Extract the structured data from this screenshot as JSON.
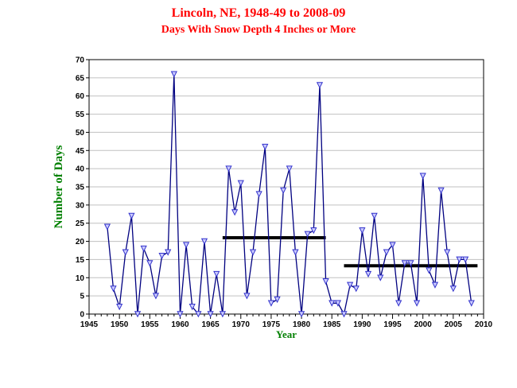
{
  "header": {
    "title": "Lincoln, NE, 1948-49 to 2008-09",
    "subtitle": "Days With Snow Depth 4 Inches or More"
  },
  "colors": {
    "title": "#ff0000",
    "axis_titles": "#008000",
    "line": "#000080",
    "markers": "#3333cc",
    "marker_fill": "#ccccff",
    "grid": "#c0c0c0",
    "average_bars": "#000000"
  },
  "chart_data": {
    "type": "line",
    "title": "Lincoln, NE, 1948-49 to 2008-09",
    "subtitle": "Days With Snow Depth 4 Inches or More",
    "xlabel": "Year",
    "ylabel": "Number of Days",
    "xlim": [
      1945,
      2010
    ],
    "ylim": [
      0,
      70
    ],
    "x_ticks": [
      1945,
      1950,
      1955,
      1960,
      1965,
      1970,
      1975,
      1980,
      1985,
      1990,
      1995,
      2000,
      2005,
      2010
    ],
    "y_ticks": [
      0,
      5,
      10,
      15,
      20,
      25,
      30,
      35,
      40,
      45,
      50,
      55,
      60,
      65,
      70
    ],
    "grid": true,
    "marker": "triangle-down",
    "series": [
      {
        "x": [
          1948,
          1949,
          1950,
          1951,
          1952,
          1953,
          1954,
          1955,
          1956,
          1957,
          1958,
          1959,
          1960,
          1961,
          1962,
          1963,
          1964,
          1965,
          1966,
          1967,
          1968,
          1969,
          1970,
          1971,
          1972,
          1973,
          1974,
          1975,
          1976,
          1977,
          1978,
          1979,
          1980,
          1981,
          1982,
          1983,
          1984,
          1985,
          1986,
          1987,
          1988,
          1989,
          1990,
          1991,
          1992,
          1993,
          1994,
          1995,
          1996,
          1997,
          1998,
          1999,
          2000,
          2001,
          2002,
          2003,
          2004,
          2005,
          2006,
          2007,
          2008
        ],
        "values": [
          24,
          7,
          2,
          17,
          27,
          0,
          18,
          14,
          5,
          16,
          17,
          66,
          0,
          19,
          2,
          0,
          20,
          0,
          11,
          0,
          40,
          28,
          36,
          5,
          17,
          33,
          46,
          3,
          4,
          34,
          40,
          17,
          0,
          22,
          23,
          63,
          9,
          3,
          3,
          0,
          8,
          7,
          23,
          11,
          27,
          10,
          17,
          19,
          3,
          14,
          14,
          3,
          38,
          12,
          8,
          34,
          17,
          7,
          15,
          15,
          3
        ]
      }
    ],
    "average_bars": [
      {
        "x_start": 1967,
        "x_end": 1984,
        "value": 21
      },
      {
        "x_start": 1987,
        "x_end": 2009,
        "value": 13.3
      }
    ]
  }
}
